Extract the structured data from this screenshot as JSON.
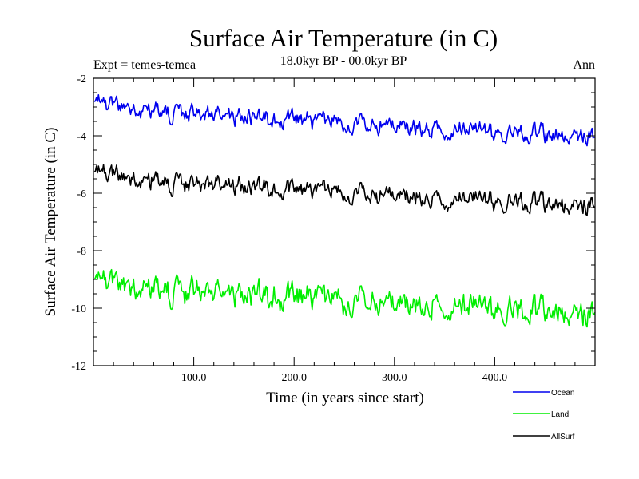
{
  "chart_data": {
    "type": "line",
    "title": "Surface Air Temperature (in C)",
    "subtitle": "18.0kyr BP - 00.0kyr BP",
    "experiment_label": "Expt = temes-temea",
    "period_label": "Ann",
    "xlabel": "Time (in years since start)",
    "ylabel": "Surface Air Temperature (in C)",
    "xlim": [
      0,
      500
    ],
    "ylim": [
      -12,
      -2
    ],
    "x_ticks": [
      100,
      200,
      300,
      400
    ],
    "x_tick_labels": [
      "100.0",
      "200.0",
      "300.0",
      "400.0"
    ],
    "y_ticks": [
      -12,
      -10,
      -8,
      -6,
      -4,
      -2
    ],
    "y_tick_labels": [
      "-12",
      "-10",
      "-8",
      "-6",
      "-4",
      "-2"
    ],
    "legend_position": "bottom-right",
    "series": [
      {
        "name": "Ocean",
        "color": "#0000ee",
        "start": -2.85,
        "end": -4.05
      },
      {
        "name": "Land",
        "color": "#00ee00",
        "start": -9.05,
        "end": -10.2
      },
      {
        "name": "AllSurf",
        "color": "#000000",
        "start": -5.3,
        "end": -6.45
      }
    ]
  }
}
